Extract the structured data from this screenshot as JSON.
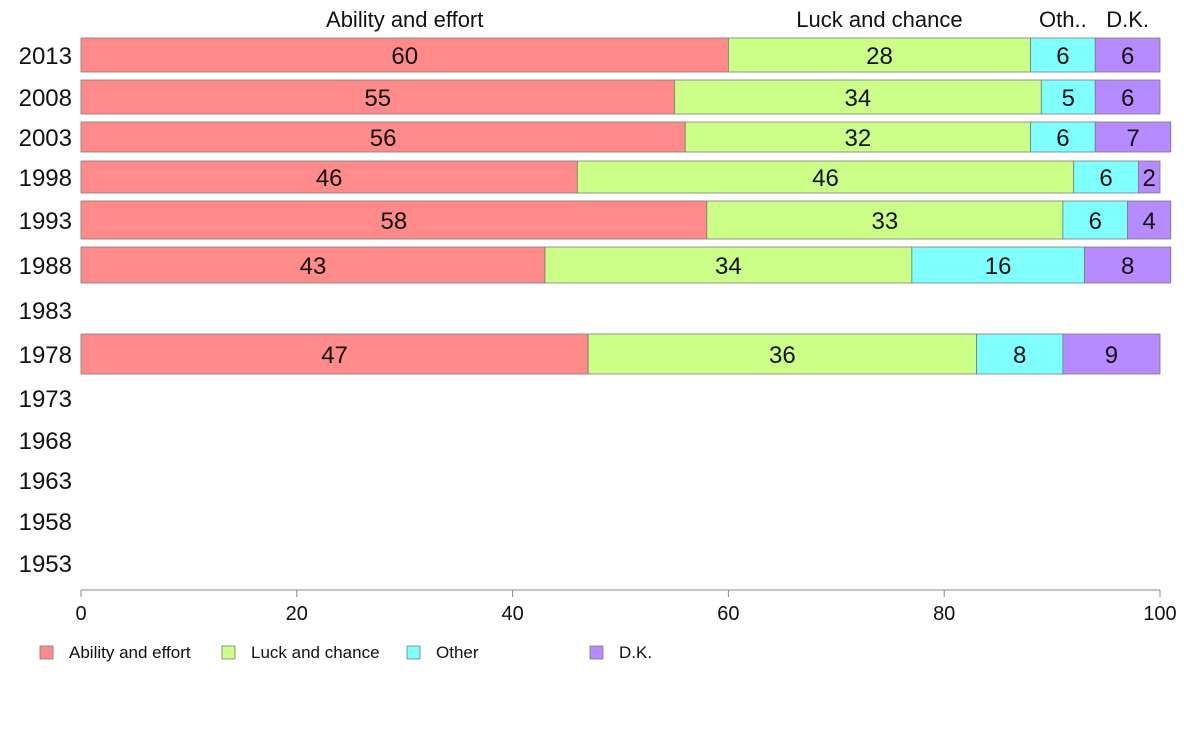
{
  "chart_data": {
    "type": "bar",
    "orientation": "horizontal",
    "stacked": true,
    "categories": [
      "2013",
      "2008",
      "2003",
      "1998",
      "1993",
      "1988",
      "1983",
      "1978",
      "1973",
      "1968",
      "1963",
      "1958",
      "1953"
    ],
    "series": [
      {
        "name": "Ability and effort",
        "short_name": "Ability and effort",
        "color": "#FF8A8A",
        "values": [
          60,
          55,
          56,
          46,
          58,
          43,
          null,
          47,
          null,
          null,
          null,
          null,
          null
        ]
      },
      {
        "name": "Luck and chance",
        "short_name": "Luck and chance",
        "color": "#CCFF88",
        "values": [
          28,
          34,
          32,
          46,
          33,
          34,
          null,
          36,
          null,
          null,
          null,
          null,
          null
        ]
      },
      {
        "name": "Other",
        "short_name": "Oth..",
        "color": "#80FFFF",
        "values": [
          6,
          5,
          6,
          6,
          6,
          16,
          null,
          8,
          null,
          null,
          null,
          null,
          null
        ]
      },
      {
        "name": "D.K.",
        "short_name": "D.K.",
        "color": "#B88AFF",
        "values": [
          6,
          6,
          7,
          2,
          4,
          8,
          null,
          9,
          null,
          null,
          null,
          null,
          null
        ]
      }
    ],
    "xlim": [
      0,
      100
    ],
    "x_ticks": [
      "0",
      "20",
      "40",
      "60",
      "80",
      "100"
    ],
    "grid": false,
    "legend_position": "bottom-left",
    "series_labels_position": "top"
  }
}
